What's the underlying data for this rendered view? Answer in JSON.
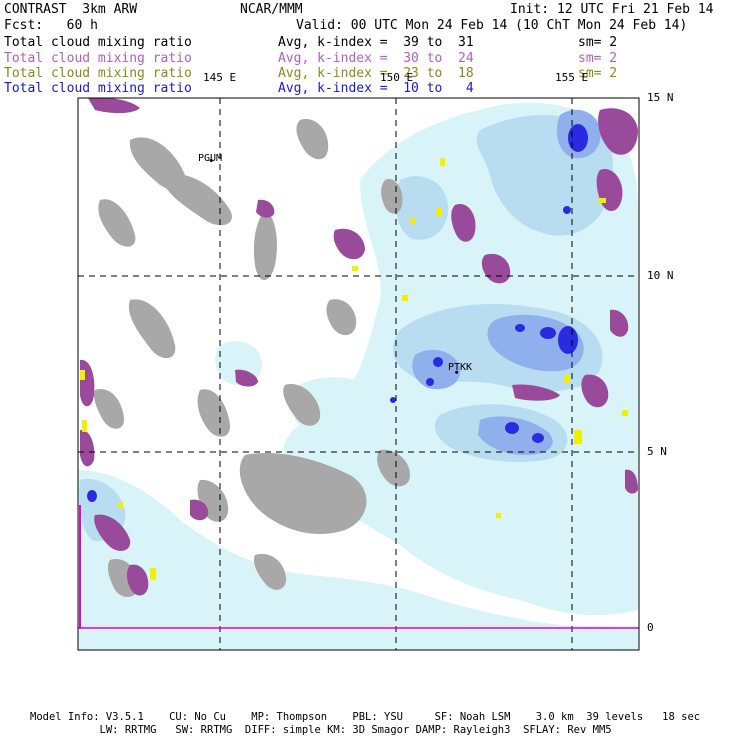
{
  "header": {
    "title": "CONTRAST  3km ARW",
    "center": "NCAR/MMM",
    "init": "Init: 12 UTC Fri 21 Feb 14",
    "fcst": "Fcst:   60 h",
    "valid": "Valid: 00 UTC Mon 24 Feb 14 (10 ChT Mon 24 Feb 14)"
  },
  "fields": [
    {
      "name": "Total cloud mixing ratio",
      "avg": "Avg, k-index =  39 to  31",
      "sm": "sm= 2",
      "color": "#000000"
    },
    {
      "name": "Total cloud mixing ratio",
      "avg": "Avg, k-index =  30 to  24",
      "sm": "sm= 2",
      "color": "#b060c0"
    },
    {
      "name": "Total cloud mixing ratio",
      "avg": "Avg, k-index =  23 to  18",
      "sm": "sm= 2",
      "color": "#8a8a1a"
    },
    {
      "name": "Total cloud mixing ratio",
      "avg": "Avg, k-index =  10 to   4",
      "sm": "",
      "color": "#1a1ad0"
    }
  ],
  "map": {
    "lon_labels": [
      "145 E",
      "150 E",
      "155 E"
    ],
    "lat_labels": [
      "15 N",
      "10 N",
      "5 N",
      "0"
    ],
    "lon_range": [
      141.0,
      157.0
    ],
    "lat_range": [
      -0.6,
      15.3
    ],
    "stations": [
      {
        "id": "PGUM",
        "lon": 144.8,
        "lat": 13.5
      },
      {
        "id": "PTKK",
        "lon": 151.8,
        "lat": 7.4
      }
    ],
    "colors": {
      "gray": "#a8a8a8",
      "purple": "#9a4a9a",
      "yellow": "#f0f000",
      "light_cyan": "#d8f4f8",
      "light_blue": "#b8dcf0",
      "mid_blue": "#8fb0ec",
      "blue": "#6c80e8",
      "deep_blue": "#2a2ae0",
      "grid": "#000000",
      "magenta_line": "#e000d0"
    }
  },
  "footer": {
    "line1": "Model Info: V3.5.1    CU: No Cu    MP: Thompson    PBL: YSU     SF: Noah LSM    3.0 km  39 levels   18 sec",
    "line2": "           LW: RRTMG   SW: RRTMG  DIFF: simple KM: 3D Smagor DAMP: Rayleigh3  SFLAY: Rev MM5"
  }
}
